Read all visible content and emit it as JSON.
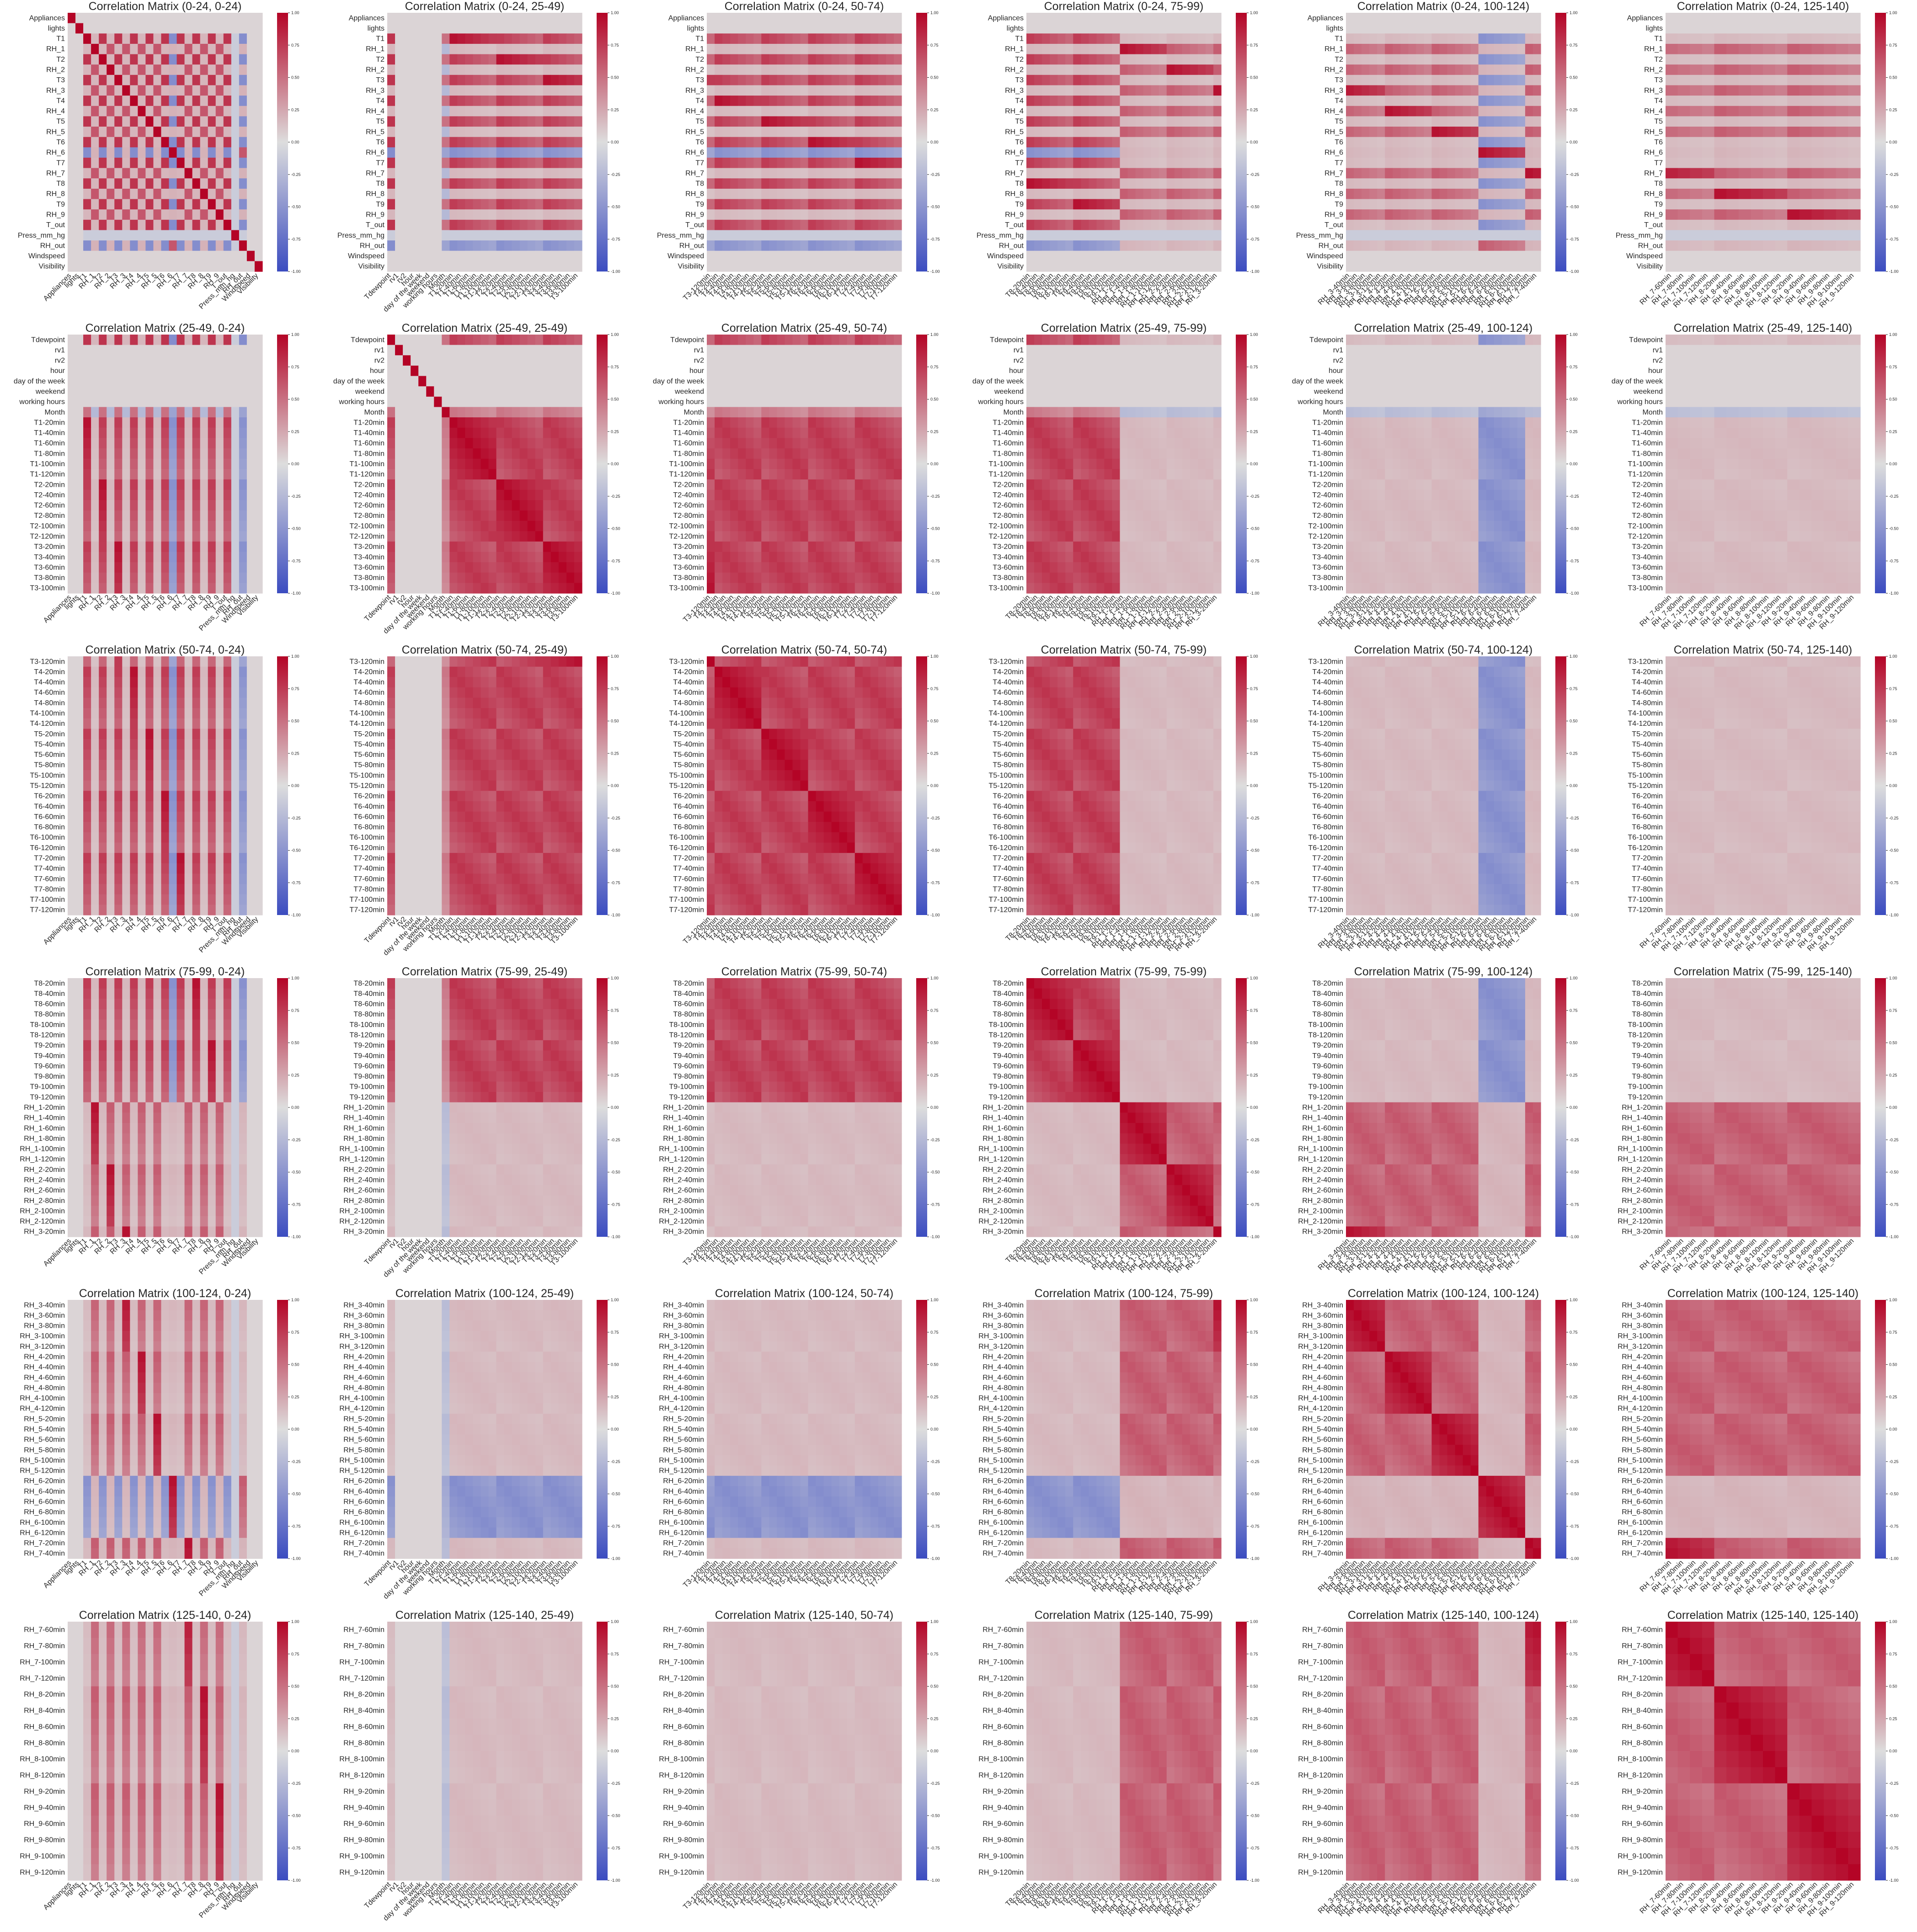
{
  "figure": {
    "colormap": "coolwarm",
    "colormap_low": "#3b4cc0",
    "colormap_mid": "#dddddd",
    "colormap_high": "#b40426",
    "colorbar_ticks": [
      "1.00",
      "0.75",
      "0.50",
      "0.25",
      "0.00",
      "-0.25",
      "-0.50",
      "-0.75",
      "-1.00"
    ],
    "colorbar_values": [
      1,
      0.75,
      0.5,
      0.25,
      0,
      -0.25,
      -0.5,
      -0.75,
      -1
    ]
  },
  "groups": {
    "g0": {
      "range": "0-24",
      "labels": [
        "Appliances",
        "lights",
        "T1",
        "RH_1",
        "T2",
        "RH_2",
        "T3",
        "RH_3",
        "T4",
        "RH_4",
        "T5",
        "RH_5",
        "T6",
        "RH_6",
        "T7",
        "RH_7",
        "T8",
        "RH_8",
        "T9",
        "RH_9",
        "T_out",
        "Press_mm_hg",
        "RH_out",
        "Windspeed",
        "Visibility"
      ],
      "x_labels": [
        "Appliances",
        "lights",
        "T1",
        "RH_1",
        "T2",
        "RH_2",
        "T3",
        "RH_3",
        "T4",
        "RH_4",
        "T5",
        "RH_5",
        "T6",
        "RH_6",
        "T7",
        "RH_7",
        "T8",
        "RH_8",
        "T9",
        "RH_9",
        "T_out",
        "Press_mm_hg",
        "RH_out",
        "Windspeed",
        "Visibility"
      ]
    },
    "g1": {
      "range": "25-49",
      "labels": [
        "Tdewpoint",
        "rv1",
        "rv2",
        "hour",
        "day of the week",
        "weekend",
        "working hours",
        "Month",
        "T1-20min",
        "T1-40min",
        "T1-60min",
        "T1-80min",
        "T1-100min",
        "T1-120min",
        "T2-20min",
        "T2-40min",
        "T2-60min",
        "T2-80min",
        "T2-100min",
        "T2-120min",
        "T3-20min",
        "T3-40min",
        "T3-60min",
        "T3-80min",
        "T3-100min"
      ],
      "x_labels": [
        "Tdewpoint",
        "rv1",
        "rv2",
        "hour",
        "day of the week",
        "weekend",
        "working hours",
        "Month",
        "T1-20min",
        "T1-40min",
        "T1-60min",
        "T1-80min",
        "T1-100min",
        "T1-120min",
        "T2-20min",
        "T2-40min",
        "T2-60min",
        "T2-80min",
        "T2-100min",
        "T2-120min",
        "T3-20min",
        "T3-40min",
        "T3-60min",
        "T3-80min",
        "T3-100min"
      ]
    },
    "g2": {
      "range": "50-74",
      "labels": [
        "T3-120min",
        "T4-20min",
        "T4-40min",
        "T4-60min",
        "T4-80min",
        "T4-100min",
        "T4-120min",
        "T5-20min",
        "T5-40min",
        "T5-60min",
        "T5-80min",
        "T5-100min",
        "T5-120min",
        "T6-20min",
        "T6-40min",
        "T6-60min",
        "T6-80min",
        "T6-100min",
        "T6-120min",
        "T7-20min",
        "T7-40min",
        "T7-60min",
        "T7-80min",
        "T7-100min",
        "T7-120min"
      ],
      "x_labels": [
        "T3-120min",
        "T4-20min",
        "T4-40min",
        "T4-60min",
        "T4-80min",
        "T4-100min",
        "T4-120min",
        "T5-20min",
        "T5-40min",
        "T5-60min",
        "T5-80min",
        "T5-100min",
        "T5-120min",
        "T6-20min",
        "T6-40min",
        "T6-60min",
        "T6-80min",
        "T6-100min",
        "T6-120min",
        "T7-20min",
        "T7-40min",
        "T7-60min",
        "T7-80min",
        "T7-100min",
        "T7-120min"
      ]
    },
    "g3": {
      "range": "75-99",
      "labels": [
        "T8-20min",
        "T8-40min",
        "T8-60min",
        "T8-80min",
        "T8-100min",
        "T8-120min",
        "T9-20min",
        "T9-40min",
        "T9-60min",
        "T9-80min",
        "T9-100min",
        "T9-120min",
        "RH_1-20min",
        "RH_1-40min",
        "RH_1-60min",
        "RH_1-80min",
        "RH_1-100min",
        "RH_1-120min",
        "RH_2-20min",
        "RH_2-40min",
        "RH_2-60min",
        "RH_2-80min",
        "RH_2-100min",
        "RH_2-120min",
        "RH_3-20min"
      ],
      "x_labels": [
        "T8-20min",
        "T8-40min",
        "T8-60min",
        "T8-80min",
        "T8-100min",
        "T8-120min",
        "T9-20min",
        "T9-40min",
        "T9-60min",
        "T9-80min",
        "T9-100min",
        "T9-120min",
        "RH_1-20min",
        "RH_1-40min",
        "RH_1-60min",
        "RH_1-80min",
        "RH_1-100min",
        "RH_1-120min",
        "RH_2-20min",
        "RH_2-40min",
        "RH_2-60min",
        "RH_2-80min",
        "RH_2-100min",
        "RH_2-120min",
        "RH_3-20min"
      ]
    },
    "g4": {
      "range": "100-124",
      "labels": [
        "RH_3-40min",
        "RH_3-60min",
        "RH_3-80min",
        "RH_3-100min",
        "RH_3-120min",
        "RH_4-20min",
        "RH_4-40min",
        "RH_4-60min",
        "RH_4-80min",
        "RH_4-100min",
        "RH_4-120min",
        "RH_5-20min",
        "RH_5-40min",
        "RH_5-60min",
        "RH_5-80min",
        "RH_5-100min",
        "RH_5-120min",
        "RH_6-20min",
        "RH_6-40min",
        "RH_6-60min",
        "RH_6-80min",
        "RH_6-100min",
        "RH_6-120min",
        "RH_7-20min",
        "RH_7-40min"
      ],
      "x_labels": [
        "RH_3-40min",
        "RH_3-60min",
        "RH_3-80min",
        "RH_3-100min",
        "RH_3-120min",
        "RH_4-20min",
        "RH_4-40min",
        "RH_4-60min",
        "RH_4-80min",
        "RH_4-100min",
        "RH_4-120min",
        "RH_5-20min",
        "RH_5-40min",
        "RH_5-60min",
        "RH_5-80min",
        "RH_5-100min",
        "RH_5-120min",
        "RH_6-20min",
        "RH_6-40min",
        "RH_6-60min",
        "RH_6-80min",
        "RH_6-100min",
        "RH_6-120min",
        "RH_7-20min",
        "RH_7-40min"
      ]
    },
    "g5": {
      "range": "125-140",
      "labels": [
        "RH_7-60min",
        "RH_7-80min",
        "RH_7-100min",
        "RH_7-120min",
        "RH_8-20min",
        "RH_8-40min",
        "RH_8-60min",
        "RH_8-80min",
        "RH_8-100min",
        "RH_8-120min",
        "RH_9-20min",
        "RH_9-40min",
        "RH_9-60min",
        "RH_9-80min",
        "RH_9-100min",
        "RH_9-120min"
      ],
      "x_labels": [
        "RH_7-60min",
        "RH_7-80min",
        "RH_7-100min",
        "RH_7-120min",
        "RH_8-20min",
        "RH_8-40min",
        "RH_8-60min",
        "RH_8-80min",
        "RH_8-100min",
        "RH_8-120min",
        "RH_9-20min",
        "RH_9-40min",
        "RH_9-60min",
        "RH_9-80min",
        "RH_9-100min",
        "RH_9-120min"
      ]
    }
  },
  "chart_data": [
    {
      "type": "heatmap",
      "title": "Correlation Matrix (0-24, 0-24)",
      "rows": "g0",
      "cols": "g0",
      "vmin": -1,
      "vmax": 1
    },
    {
      "type": "heatmap",
      "title": "Correlation Matrix (0-24, 25-49)",
      "rows": "g0",
      "cols": "g1",
      "vmin": -1,
      "vmax": 1
    },
    {
      "type": "heatmap",
      "title": "Correlation Matrix (0-24, 50-74)",
      "rows": "g0",
      "cols": "g2",
      "vmin": -1,
      "vmax": 1
    },
    {
      "type": "heatmap",
      "title": "Correlation Matrix (0-24, 75-99)",
      "rows": "g0",
      "cols": "g3",
      "vmin": -1,
      "vmax": 1
    },
    {
      "type": "heatmap",
      "title": "Correlation Matrix (0-24, 100-124)",
      "rows": "g0",
      "cols": "g4",
      "vmin": -1,
      "vmax": 1
    },
    {
      "type": "heatmap",
      "title": "Correlation Matrix (0-24, 125-140)",
      "rows": "g0",
      "cols": "g5",
      "vmin": -1,
      "vmax": 1
    },
    {
      "type": "heatmap",
      "title": "Correlation Matrix (25-49, 0-24)",
      "rows": "g1",
      "cols": "g0",
      "vmin": -1,
      "vmax": 1
    },
    {
      "type": "heatmap",
      "title": "Correlation Matrix (25-49, 25-49)",
      "rows": "g1",
      "cols": "g1",
      "vmin": -1,
      "vmax": 1
    },
    {
      "type": "heatmap",
      "title": "Correlation Matrix (25-49, 50-74)",
      "rows": "g1",
      "cols": "g2",
      "vmin": -1,
      "vmax": 1
    },
    {
      "type": "heatmap",
      "title": "Correlation Matrix (25-49, 75-99)",
      "rows": "g1",
      "cols": "g3",
      "vmin": -1,
      "vmax": 1
    },
    {
      "type": "heatmap",
      "title": "Correlation Matrix (25-49, 100-124)",
      "rows": "g1",
      "cols": "g4",
      "vmin": -1,
      "vmax": 1
    },
    {
      "type": "heatmap",
      "title": "Correlation Matrix (25-49, 125-140)",
      "rows": "g1",
      "cols": "g5",
      "vmin": -1,
      "vmax": 1
    },
    {
      "type": "heatmap",
      "title": "Correlation Matrix (50-74, 0-24)",
      "rows": "g2",
      "cols": "g0",
      "vmin": -1,
      "vmax": 1
    },
    {
      "type": "heatmap",
      "title": "Correlation Matrix (50-74, 25-49)",
      "rows": "g2",
      "cols": "g1",
      "vmin": -1,
      "vmax": 1
    },
    {
      "type": "heatmap",
      "title": "Correlation Matrix (50-74, 50-74)",
      "rows": "g2",
      "cols": "g2",
      "vmin": -1,
      "vmax": 1
    },
    {
      "type": "heatmap",
      "title": "Correlation Matrix (50-74, 75-99)",
      "rows": "g2",
      "cols": "g3",
      "vmin": -1,
      "vmax": 1
    },
    {
      "type": "heatmap",
      "title": "Correlation Matrix (50-74, 100-124)",
      "rows": "g2",
      "cols": "g4",
      "vmin": -1,
      "vmax": 1
    },
    {
      "type": "heatmap",
      "title": "Correlation Matrix (50-74, 125-140)",
      "rows": "g2",
      "cols": "g5",
      "vmin": -1,
      "vmax": 1
    },
    {
      "type": "heatmap",
      "title": "Correlation Matrix (75-99, 0-24)",
      "rows": "g3",
      "cols": "g0",
      "vmin": -1,
      "vmax": 1
    },
    {
      "type": "heatmap",
      "title": "Correlation Matrix (75-99, 25-49)",
      "rows": "g3",
      "cols": "g1",
      "vmin": -1,
      "vmax": 1
    },
    {
      "type": "heatmap",
      "title": "Correlation Matrix (75-99, 50-74)",
      "rows": "g3",
      "cols": "g2",
      "vmin": -1,
      "vmax": 1
    },
    {
      "type": "heatmap",
      "title": "Correlation Matrix (75-99, 75-99)",
      "rows": "g3",
      "cols": "g3",
      "vmin": -1,
      "vmax": 1
    },
    {
      "type": "heatmap",
      "title": "Correlation Matrix (75-99, 100-124)",
      "rows": "g3",
      "cols": "g4",
      "vmin": -1,
      "vmax": 1
    },
    {
      "type": "heatmap",
      "title": "Correlation Matrix (75-99, 125-140)",
      "rows": "g3",
      "cols": "g5",
      "vmin": -1,
      "vmax": 1
    },
    {
      "type": "heatmap",
      "title": "Correlation Matrix (100-124, 0-24)",
      "rows": "g4",
      "cols": "g0",
      "vmin": -1,
      "vmax": 1
    },
    {
      "type": "heatmap",
      "title": "Correlation Matrix (100-124, 25-49)",
      "rows": "g4",
      "cols": "g1",
      "vmin": -1,
      "vmax": 1
    },
    {
      "type": "heatmap",
      "title": "Correlation Matrix (100-124, 50-74)",
      "rows": "g4",
      "cols": "g2",
      "vmin": -1,
      "vmax": 1
    },
    {
      "type": "heatmap",
      "title": "Correlation Matrix (100-124, 75-99)",
      "rows": "g4",
      "cols": "g3",
      "vmin": -1,
      "vmax": 1
    },
    {
      "type": "heatmap",
      "title": "Correlation Matrix (100-124, 100-124)",
      "rows": "g4",
      "cols": "g4",
      "vmin": -1,
      "vmax": 1
    },
    {
      "type": "heatmap",
      "title": "Correlation Matrix (100-124, 125-140)",
      "rows": "g4",
      "cols": "g5",
      "vmin": -1,
      "vmax": 1
    },
    {
      "type": "heatmap",
      "title": "Correlation Matrix (125-140, 0-24)",
      "rows": "g5",
      "cols": "g0",
      "vmin": -1,
      "vmax": 1
    },
    {
      "type": "heatmap",
      "title": "Correlation Matrix (125-140, 25-49)",
      "rows": "g5",
      "cols": "g1",
      "vmin": -1,
      "vmax": 1
    },
    {
      "type": "heatmap",
      "title": "Correlation Matrix (125-140, 50-74)",
      "rows": "g5",
      "cols": "g2",
      "vmin": -1,
      "vmax": 1
    },
    {
      "type": "heatmap",
      "title": "Correlation Matrix (125-140, 75-99)",
      "rows": "g5",
      "cols": "g3",
      "vmin": -1,
      "vmax": 1
    },
    {
      "type": "heatmap",
      "title": "Correlation Matrix (125-140, 100-124)",
      "rows": "g5",
      "cols": "g4",
      "vmin": -1,
      "vmax": 1
    },
    {
      "type": "heatmap",
      "title": "Correlation Matrix (125-140, 125-140)",
      "rows": "g5",
      "cols": "g5",
      "vmin": -1,
      "vmax": 1
    }
  ]
}
